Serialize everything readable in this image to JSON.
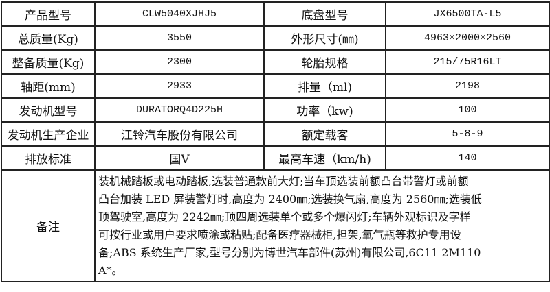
{
  "rows": [
    {
      "l1": "产品型号",
      "v1": "CLW5040XJHJ5",
      "l2": "底盘型号",
      "v2": "JX6500TA-L5"
    },
    {
      "l1": "总质量(Kg)",
      "v1": "3550",
      "l2": "外形尺寸(㎜)",
      "v2": "4963×2000×2560"
    },
    {
      "l1": "整备质量(Kg)",
      "v1": "2300",
      "l2": "轮胎规格",
      "v2": "215/75R16LT"
    },
    {
      "l1": "轴距(mm)",
      "v1": "2933",
      "l2": "排量（ml)",
      "v2": "2198"
    },
    {
      "l1": "发动机型号",
      "v1": "DURATORQ4D225H",
      "l2": "功率（kw)",
      "v2": "100"
    },
    {
      "l1": "发动机生产企业",
      "v1": "江铃汽车股份有限公司",
      "l2": "额定载客",
      "v2": "5-8-9"
    },
    {
      "l1": "排放标准",
      "v1": "国Ⅴ",
      "l2": "最高车速（km/h)",
      "v2": "140"
    }
  ],
  "notes": {
    "label": "备注",
    "lines": [
      "装机械踏板或电动踏板,选装普通款前大灯;当车顶选装前额凸台带警灯或前额",
      "凸台加装 LED 屏装警灯时,高度为 2400㎜;选装换气扇,高度为 2560㎜;选装低",
      "顶驾驶室,高度为 2242㎜;顶四周选装单个或多个爆闪灯;车辆外观标识及字样",
      "可按行业或用户要求喷涂或粘贴;配备医疗器械柜,担架,氧气瓶等救护专用设",
      "备;ABS 系统生产厂家,型号分别为博世汽车部件(苏州)有限公司,6C11 2M110",
      "A*。"
    ]
  }
}
